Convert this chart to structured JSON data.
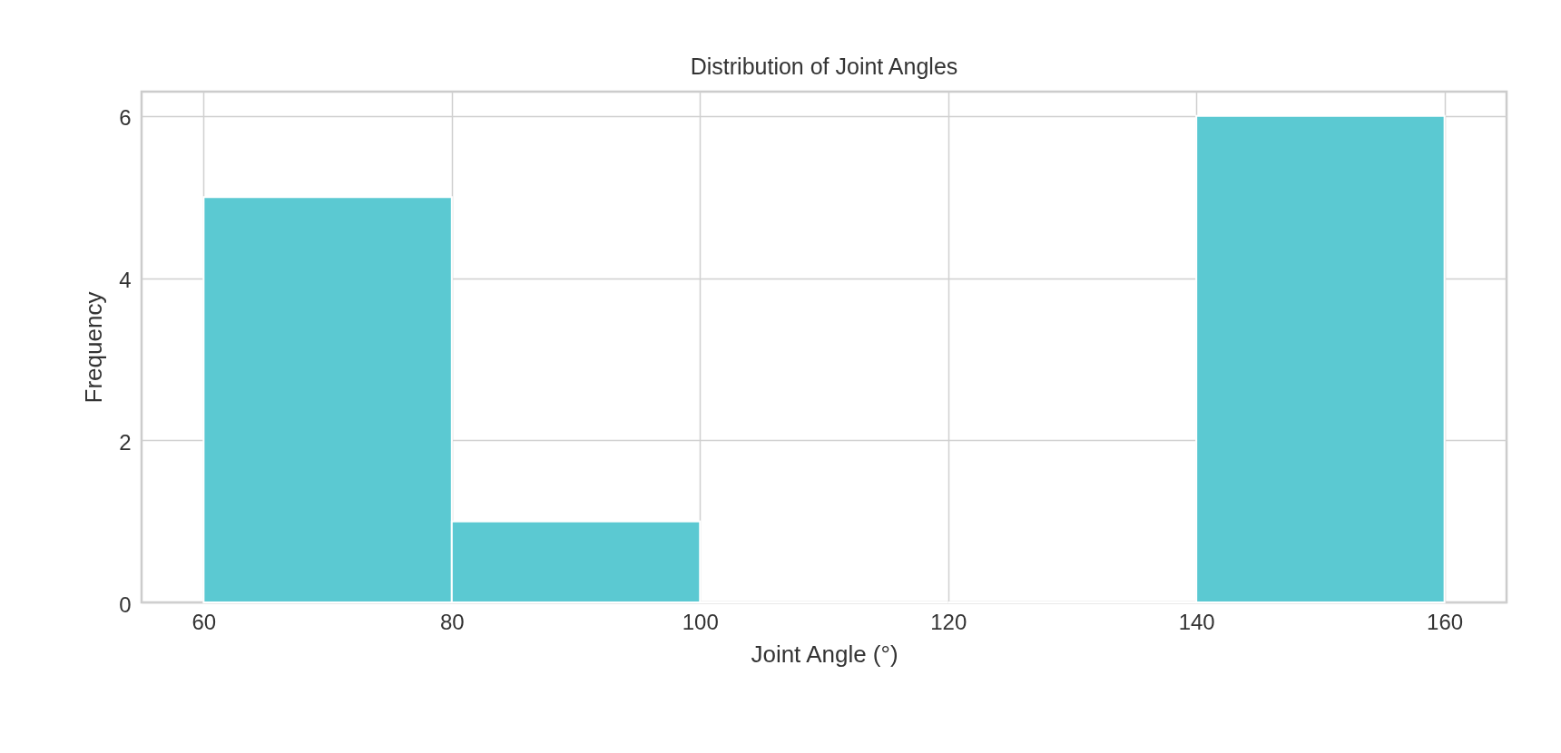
{
  "chart_data": {
    "type": "histogram",
    "title": "Distribution of Joint Angles",
    "xlabel": "Joint Angle (°)",
    "ylabel": "Frequency",
    "bins": [
      60,
      80,
      100,
      120,
      140,
      160
    ],
    "values": [
      5,
      1,
      0,
      0,
      6
    ],
    "color": "#5bc9d2",
    "xlim": [
      55,
      165
    ],
    "xticks": [
      60,
      80,
      100,
      120,
      140,
      160
    ],
    "ylim": [
      0,
      6.3
    ],
    "yticks": [
      0,
      2,
      4,
      6
    ],
    "grid": true,
    "legend": false
  }
}
